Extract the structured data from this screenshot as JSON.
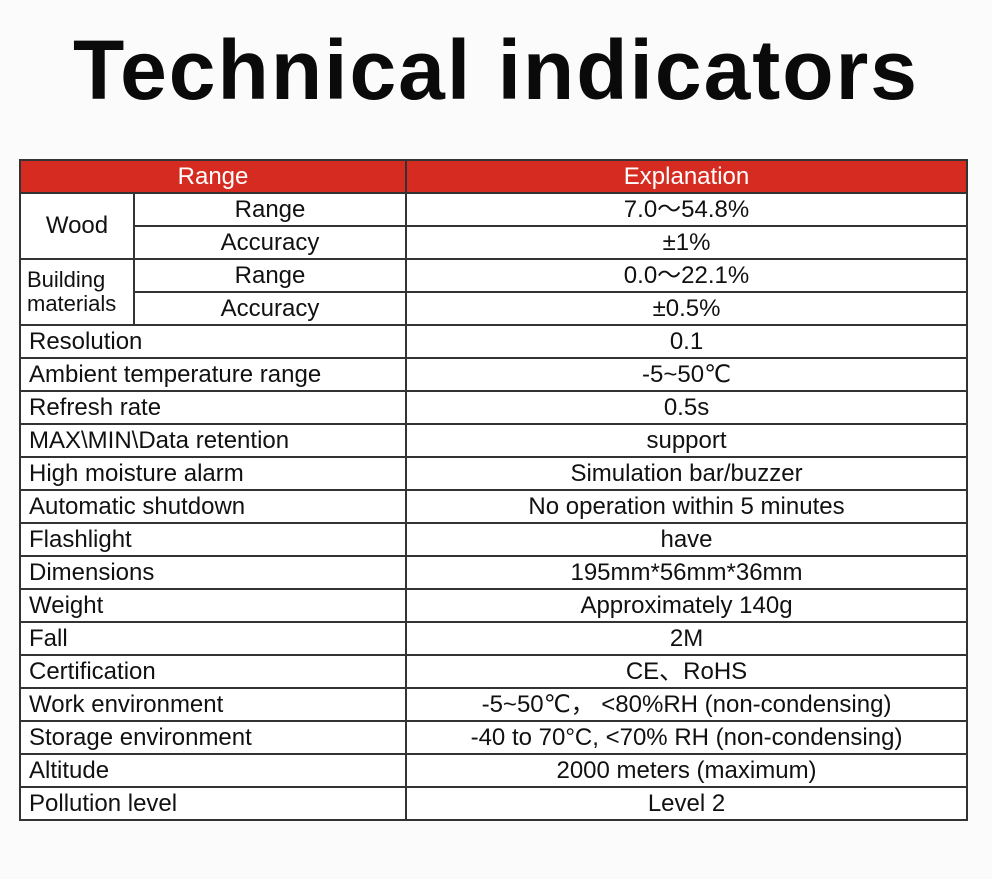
{
  "title": "Technical indicators",
  "table": {
    "header": [
      "Range",
      "Explanation"
    ],
    "groups": [
      {
        "label": "Wood",
        "rows": [
          [
            "Range",
            "7.0～54.8%"
          ],
          [
            "Accuracy",
            "±1%"
          ]
        ]
      },
      {
        "label": "Building materials",
        "rows": [
          [
            "Range",
            "0.0～22.1%"
          ],
          [
            "Accuracy",
            "±0.5%"
          ]
        ]
      }
    ],
    "rows": [
      [
        "Resolution",
        "0.1"
      ],
      [
        "Ambient temperature range",
        "-5~50℃"
      ],
      [
        "Refresh rate",
        "0.5s"
      ],
      [
        "MAX\\MIN\\Data retention",
        "support"
      ],
      [
        "High moisture alarm",
        "Simulation bar/buzzer"
      ],
      [
        "Automatic shutdown",
        "No operation within 5 minutes"
      ],
      [
        "Flashlight",
        "have"
      ],
      [
        "Dimensions",
        "195mm*56mm*36mm"
      ],
      [
        "Weight",
        "Approximately 140g"
      ],
      [
        "Fall",
        "2M"
      ],
      [
        "Certification",
        "CE、RoHS"
      ],
      [
        "Work environment",
        "-5~50℃， <80%RH (non-condensing)"
      ],
      [
        "Storage environment",
        "-40 to 70°C, <70% RH (non-condensing)"
      ],
      [
        "Altitude",
        "2000 meters (maximum)"
      ],
      [
        "Pollution level",
        "Level 2"
      ]
    ]
  }
}
